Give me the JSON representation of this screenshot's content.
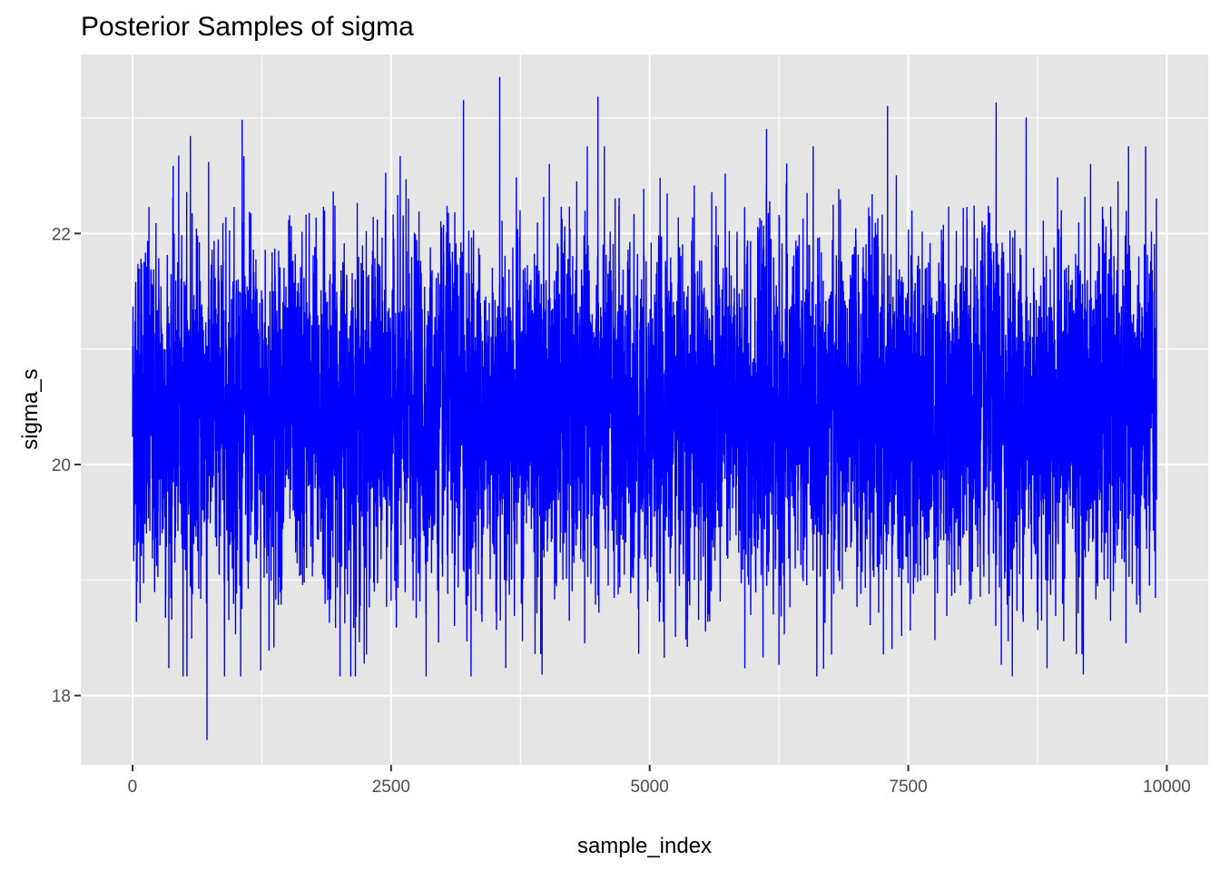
{
  "chart_data": {
    "type": "line",
    "title": "Posterior Samples of sigma",
    "xlabel": "sample_index",
    "ylabel": "sigma_s",
    "xlim": [
      -500,
      10400
    ],
    "ylim": [
      17.4,
      23.55
    ],
    "x_ticks": [
      0,
      2500,
      5000,
      7500,
      10000
    ],
    "x_tick_labels": [
      "0",
      "2500",
      "5000",
      "7500",
      "10000"
    ],
    "y_ticks": [
      18,
      20,
      22
    ],
    "y_tick_labels": [
      "18",
      "20",
      "22"
    ],
    "grid": true,
    "legend": "none",
    "series": [
      {
        "color": "#0000ff",
        "n_samples": 9900,
        "x_start": 1,
        "x_end": 9900,
        "center": 20.45,
        "typical_range": [
          19.3,
          21.6
        ],
        "min": 17.62,
        "max": 23.35,
        "extremes": [
          {
            "x": 720,
            "y": 17.62
          },
          {
            "x": 1060,
            "y": 22.98
          },
          {
            "x": 560,
            "y": 22.84
          },
          {
            "x": 3200,
            "y": 23.15
          },
          {
            "x": 3550,
            "y": 23.35
          },
          {
            "x": 4500,
            "y": 23.18
          },
          {
            "x": 6130,
            "y": 22.9
          },
          {
            "x": 7300,
            "y": 23.1
          },
          {
            "x": 8350,
            "y": 23.13
          },
          {
            "x": 8640,
            "y": 23.0
          },
          {
            "x": 1240,
            "y": 18.22
          },
          {
            "x": 2240,
            "y": 18.28
          },
          {
            "x": 5920,
            "y": 18.24
          },
          {
            "x": 6250,
            "y": 18.27
          },
          {
            "x": 8400,
            "y": 18.27
          },
          {
            "x": 7260,
            "y": 18.36
          }
        ]
      }
    ]
  }
}
